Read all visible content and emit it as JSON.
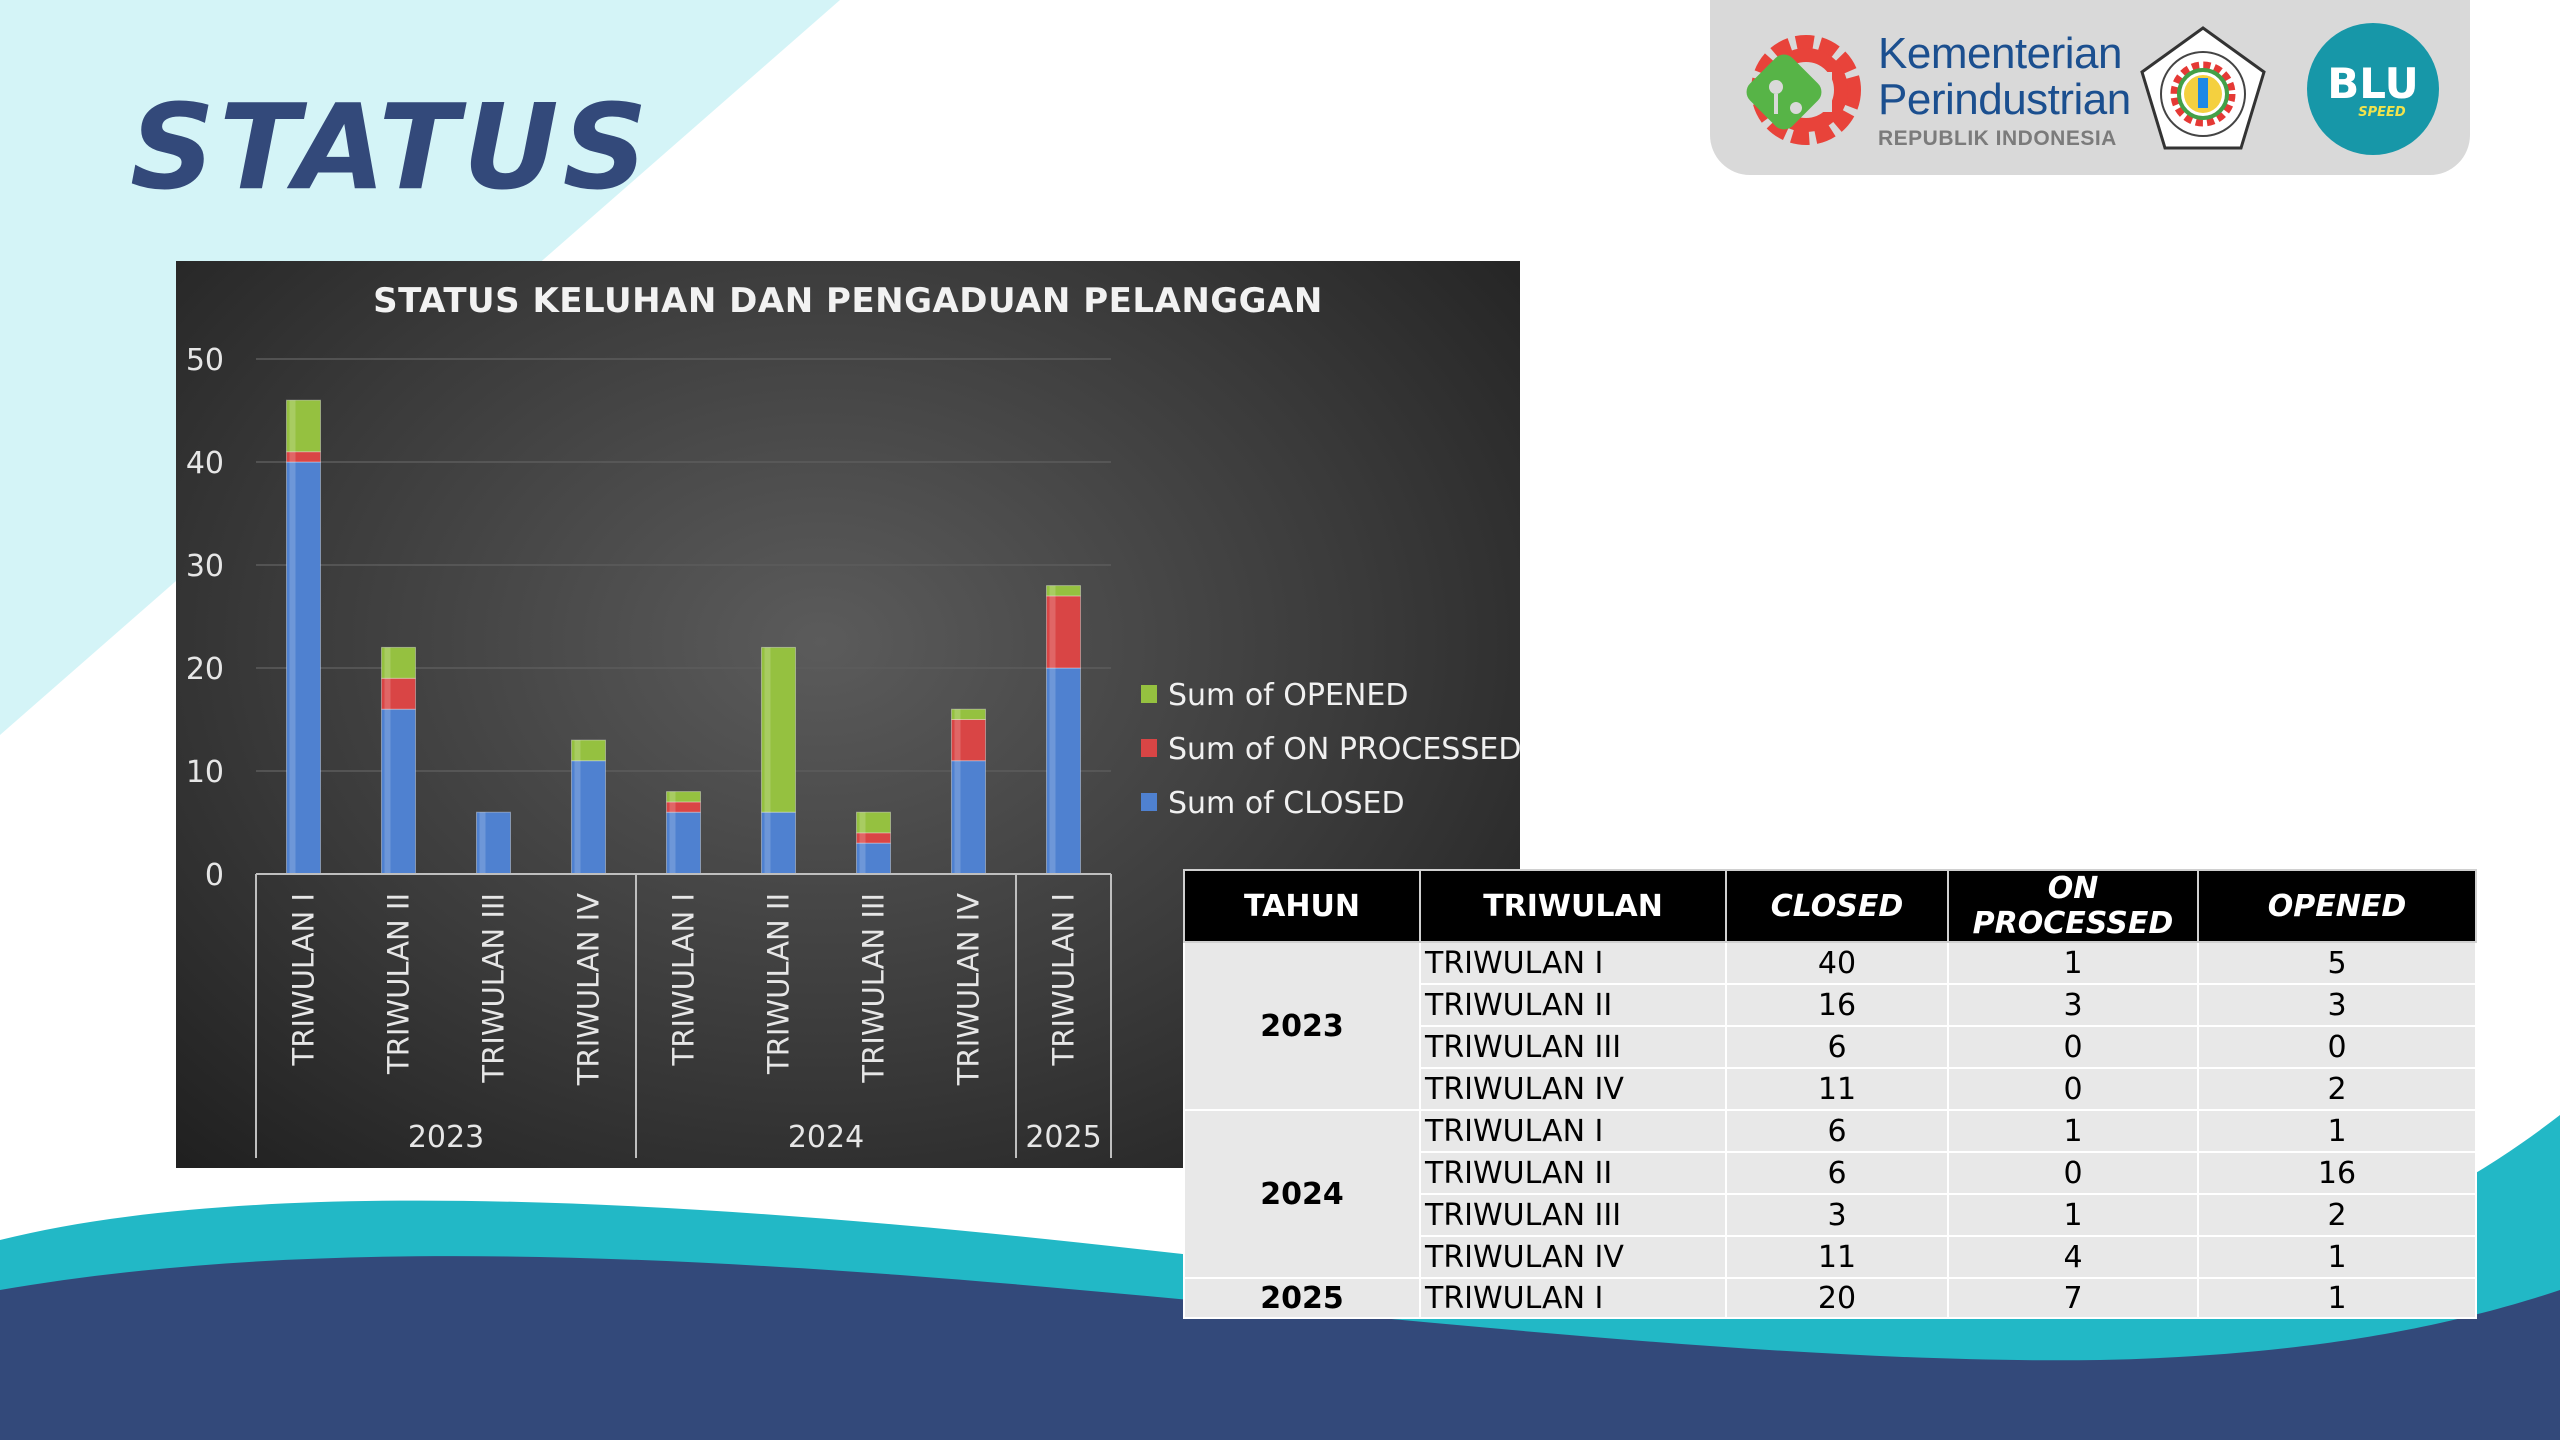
{
  "page": {
    "title": "STATUS"
  },
  "logos": {
    "kemenperin": {
      "line1": "Kementerian",
      "line2": "Perindustrian",
      "line3": "REPUBLIK INDONESIA"
    },
    "seal": {
      "icon": "polytechnic-seal-icon"
    },
    "blu": {
      "text": "BLU",
      "sub": "SPEED"
    }
  },
  "colors": {
    "title": "#33497a",
    "closed": "#4f81d0",
    "on_processed": "#d94545",
    "opened": "#95c140",
    "wave_teal": "#22b8c6",
    "wave_navy": "#33497a",
    "bg_cyan": "#d4f4f7"
  },
  "chart_data": {
    "type": "bar",
    "stacked": true,
    "title": "STATUS KELUHAN DAN PENGADUAN PELANGGAN",
    "xlabel": "",
    "ylabel": "",
    "ylim": [
      0,
      50
    ],
    "yticks": [
      0,
      10,
      20,
      30,
      40,
      50
    ],
    "grid": true,
    "legend_position": "right",
    "categories": [
      "TRIWULAN I",
      "TRIWULAN II",
      "TRIWULAN III",
      "TRIWULAN IV",
      "TRIWULAN I",
      "TRIWULAN II",
      "TRIWULAN III",
      "TRIWULAN IV",
      "TRIWULAN I"
    ],
    "groups": [
      {
        "label": "2023",
        "count": 4
      },
      {
        "label": "2024",
        "count": 4
      },
      {
        "label": "2025",
        "count": 1
      }
    ],
    "series": [
      {
        "name": "Sum of CLOSED",
        "color": "#4f81d0",
        "values": [
          40,
          16,
          6,
          11,
          6,
          6,
          3,
          11,
          20
        ]
      },
      {
        "name": "Sum of ON PROCESSED",
        "color": "#d94545",
        "values": [
          1,
          3,
          0,
          0,
          1,
          0,
          1,
          4,
          7
        ]
      },
      {
        "name": "Sum of OPENED",
        "color": "#95c140",
        "values": [
          5,
          3,
          0,
          2,
          1,
          16,
          2,
          1,
          1
        ]
      }
    ],
    "legend_order": [
      "Sum of OPENED",
      "Sum of ON PROCESSED",
      "Sum of CLOSED"
    ]
  },
  "table": {
    "headers": [
      "TAHUN",
      "TRIWULAN",
      "CLOSED",
      "ON PROCESSED",
      "OPENED"
    ],
    "years": [
      {
        "year": "2023",
        "rows": [
          [
            "TRIWULAN I",
            "40",
            "1",
            "5"
          ],
          [
            "TRIWULAN II",
            "16",
            "3",
            "3"
          ],
          [
            "TRIWULAN III",
            "6",
            "0",
            "0"
          ],
          [
            "TRIWULAN IV",
            "11",
            "0",
            "2"
          ]
        ]
      },
      {
        "year": "2024",
        "rows": [
          [
            "TRIWULAN I",
            "6",
            "1",
            "1"
          ],
          [
            "TRIWULAN II",
            "6",
            "0",
            "16"
          ],
          [
            "TRIWULAN III",
            "3",
            "1",
            "2"
          ],
          [
            "TRIWULAN IV",
            "11",
            "4",
            "1"
          ]
        ]
      },
      {
        "year": "2025",
        "rows": [
          [
            "TRIWULAN I",
            "20",
            "7",
            "1"
          ]
        ]
      }
    ]
  }
}
